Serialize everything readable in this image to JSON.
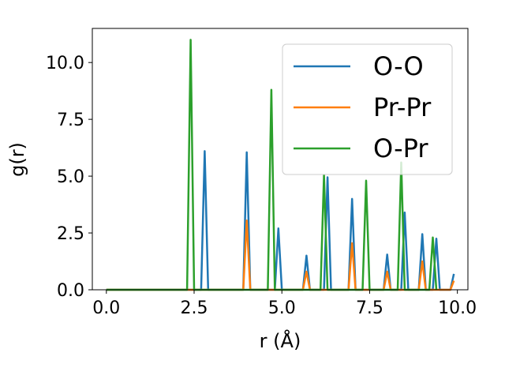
{
  "chart_data": {
    "type": "line",
    "xlabel": "r (Å)",
    "ylabel": "g(r)",
    "xlim": [
      -0.4,
      10.3
    ],
    "ylim": [
      0.0,
      11.5
    ],
    "xticks": [
      "0.0",
      "2.5",
      "5.0",
      "7.5",
      "10.0"
    ],
    "yticks": [
      "0.0",
      "2.5",
      "5.0",
      "7.5",
      "10.0"
    ],
    "legend_position": "upper-right",
    "grid": false,
    "series": [
      {
        "name": "O-O",
        "color": "#1f77b4",
        "x": [
          0,
          2.7,
          2.8,
          2.9,
          3.9,
          4.0,
          4.1,
          4.8,
          4.9,
          5.0,
          5.6,
          5.7,
          5.8,
          6.2,
          6.3,
          6.4,
          6.9,
          7.0,
          7.1,
          7.9,
          8.0,
          8.1,
          8.4,
          8.5,
          8.6,
          8.9,
          9.0,
          9.1,
          9.3,
          9.4,
          9.5,
          9.8,
          9.9
        ],
        "y": [
          0,
          0,
          6.1,
          0,
          0,
          6.05,
          0,
          0,
          2.7,
          0,
          0,
          1.5,
          0,
          0,
          4.95,
          0,
          0,
          4.0,
          0,
          0,
          1.55,
          0,
          0,
          3.4,
          0,
          0,
          2.45,
          0,
          0,
          2.25,
          0,
          0,
          0.7
        ]
      },
      {
        "name": "Pr-Pr",
        "color": "#ff7f0e",
        "x": [
          0,
          3.9,
          4.0,
          4.1,
          5.6,
          5.7,
          5.8,
          6.9,
          7.0,
          7.1,
          7.9,
          8.0,
          8.1,
          8.9,
          9.0,
          9.1,
          9.8,
          9.9
        ],
        "y": [
          0,
          0,
          3.05,
          0,
          0,
          0.8,
          0,
          0,
          2.05,
          0,
          0,
          0.8,
          0,
          0,
          1.25,
          0,
          0,
          0.4
        ]
      },
      {
        "name": "O-Pr",
        "color": "#2ca02c",
        "x": [
          0,
          2.3,
          2.4,
          2.5,
          4.6,
          4.7,
          4.8,
          6.1,
          6.2,
          6.3,
          7.3,
          7.4,
          7.5,
          8.3,
          8.4,
          8.5,
          9.2,
          9.3,
          9.4
        ],
        "y": [
          0,
          0,
          11.0,
          0,
          0,
          8.8,
          0,
          0,
          5.05,
          0,
          0,
          4.8,
          0,
          0,
          5.6,
          0,
          0,
          2.3,
          0
        ]
      }
    ]
  }
}
